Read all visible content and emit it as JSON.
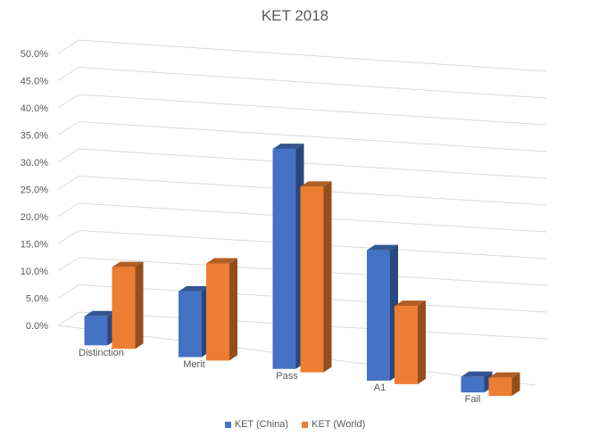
{
  "chart_data": {
    "type": "bar",
    "title": "KET 2018",
    "categories": [
      "Distinction",
      "Merit",
      "Pass",
      "A1",
      "Fail"
    ],
    "series": [
      {
        "name": "KET (China)",
        "color": "#4472C4",
        "values": [
          5.5,
          12.5,
          42.0,
          25.0,
          3.0
        ]
      },
      {
        "name": "KET (World)",
        "color": "#ED7D31",
        "values": [
          15.5,
          18.5,
          35.5,
          15.0,
          3.5
        ]
      }
    ],
    "y_ticks": [
      "0.0%",
      "5.0%",
      "10.0%",
      "15.0%",
      "20.0%",
      "25.0%",
      "30.0%",
      "35.0%",
      "40.0%",
      "45.0%",
      "50.0%"
    ],
    "ylim": [
      0,
      50
    ],
    "grid": true,
    "legend_position": "bottom"
  }
}
